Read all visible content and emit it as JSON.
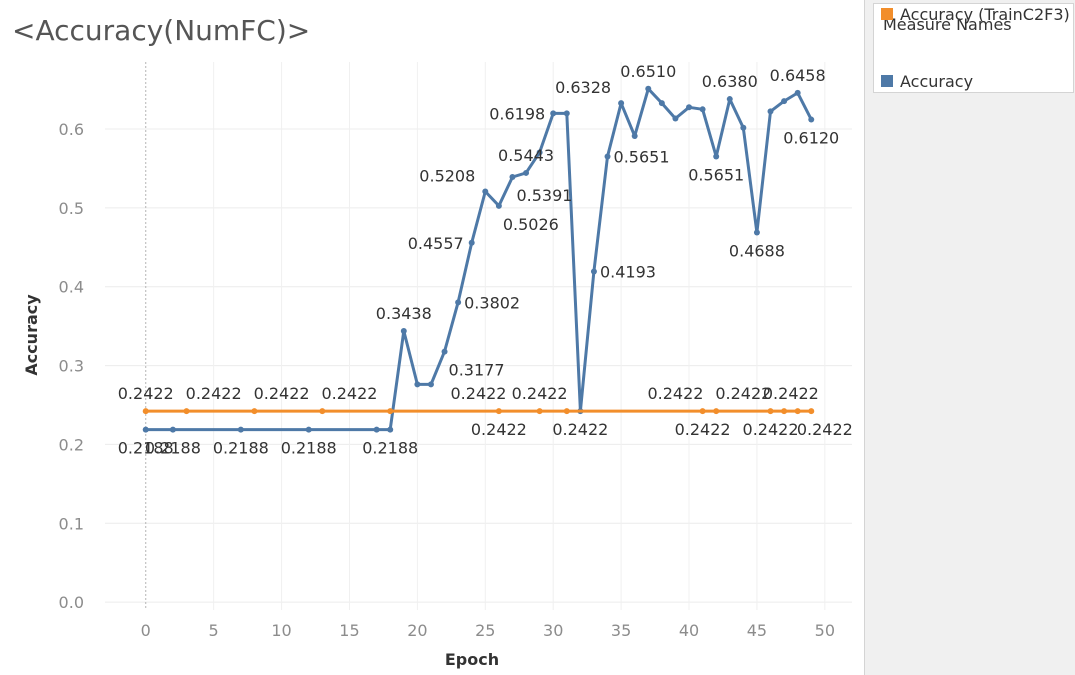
{
  "title": "<Accuracy(NumFC)>",
  "legend": {
    "title": "Measure Names",
    "items": [
      {
        "label": "Accuracy",
        "color": "#4e79a7"
      },
      {
        "label": "Accuracy (TrainC2F3)",
        "color": "#f28e2b"
      }
    ]
  },
  "chart_data": {
    "type": "line",
    "title": "<Accuracy(NumFC)>",
    "xlabel": "Epoch",
    "ylabel": "Accuracy",
    "xlim": [
      -3,
      52
    ],
    "ylim": [
      -0.01,
      0.685
    ],
    "xticks": [
      0,
      5,
      10,
      15,
      20,
      25,
      30,
      35,
      40,
      45,
      50
    ],
    "yticks": [
      0.0,
      0.1,
      0.2,
      0.3,
      0.4,
      0.5,
      0.6
    ],
    "ytick_labels": [
      "0.0",
      "0.1",
      "0.2",
      "0.3",
      "0.4",
      "0.5",
      "0.6"
    ],
    "grid": true,
    "legend_position": "right",
    "series": [
      {
        "name": "Accuracy",
        "color": "#4e79a7",
        "x": [
          0,
          2,
          7,
          12,
          17,
          18,
          19,
          20,
          21,
          22,
          23,
          24,
          25,
          26,
          27,
          28,
          29,
          30,
          31,
          32,
          33,
          34,
          35,
          36,
          37,
          38,
          39,
          40,
          41,
          42,
          43,
          44,
          45,
          46,
          47,
          48,
          49
        ],
        "y": [
          0.2188,
          0.2188,
          0.2188,
          0.2188,
          0.2188,
          0.2188,
          0.3438,
          0.2761,
          0.2761,
          0.3177,
          0.3802,
          0.4557,
          0.5208,
          0.5026,
          0.5391,
          0.5443,
          0.5703,
          0.6198,
          0.6198,
          0.2422,
          0.4193,
          0.5651,
          0.6328,
          0.5911,
          0.651,
          0.6328,
          0.6133,
          0.6276,
          0.625,
          0.5651,
          0.638,
          0.6016,
          0.4688,
          0.6224,
          0.6354,
          0.6458,
          0.612
        ],
        "labels": [
          {
            "x": 0,
            "y": 0.2188,
            "text": "0.2188",
            "pos": "below"
          },
          {
            "x": 2,
            "y": 0.2188,
            "text": "0.2188",
            "pos": "below"
          },
          {
            "x": 7,
            "y": 0.2188,
            "text": "0.2188",
            "pos": "below"
          },
          {
            "x": 12,
            "y": 0.2188,
            "text": "0.2188",
            "pos": "below"
          },
          {
            "x": 18,
            "y": 0.2188,
            "text": "0.2188",
            "pos": "below"
          },
          {
            "x": 19,
            "y": 0.3438,
            "text": "0.3438",
            "pos": "above"
          },
          {
            "x": 22,
            "y": 0.3177,
            "text": "0.3177",
            "pos": "below-right"
          },
          {
            "x": 23,
            "y": 0.3802,
            "text": "0.3802",
            "pos": "right"
          },
          {
            "x": 24,
            "y": 0.4557,
            "text": "0.4557",
            "pos": "left"
          },
          {
            "x": 25,
            "y": 0.5208,
            "text": "0.5208",
            "pos": "above-left"
          },
          {
            "x": 26,
            "y": 0.5026,
            "text": "0.5026",
            "pos": "below-right"
          },
          {
            "x": 27,
            "y": 0.5391,
            "text": "0.5391",
            "pos": "below-right"
          },
          {
            "x": 28,
            "y": 0.5443,
            "text": "0.5443",
            "pos": "above"
          },
          {
            "x": 30,
            "y": 0.6198,
            "text": "0.6198",
            "pos": "left"
          },
          {
            "x": 33,
            "y": 0.4193,
            "text": "0.4193",
            "pos": "right"
          },
          {
            "x": 34,
            "y": 0.5651,
            "text": "0.5651",
            "pos": "right"
          },
          {
            "x": 35,
            "y": 0.6328,
            "text": "0.6328",
            "pos": "above-left"
          },
          {
            "x": 37,
            "y": 0.651,
            "text": "0.6510",
            "pos": "above"
          },
          {
            "x": 42,
            "y": 0.5651,
            "text": "0.5651",
            "pos": "below"
          },
          {
            "x": 43,
            "y": 0.638,
            "text": "0.6380",
            "pos": "above"
          },
          {
            "x": 45,
            "y": 0.4688,
            "text": "0.4688",
            "pos": "below"
          },
          {
            "x": 48,
            "y": 0.6458,
            "text": "0.6458",
            "pos": "above"
          },
          {
            "x": 49,
            "y": 0.612,
            "text": "0.6120",
            "pos": "below"
          }
        ]
      },
      {
        "name": "Accuracy (TrainC2F3)",
        "color": "#f28e2b",
        "x": [
          0,
          3,
          8,
          13,
          18,
          26,
          29,
          31,
          41,
          42,
          46,
          47,
          48,
          49
        ],
        "y": [
          0.2422,
          0.2422,
          0.2422,
          0.2422,
          0.2422,
          0.2422,
          0.2422,
          0.2422,
          0.2422,
          0.2422,
          0.2422,
          0.2422,
          0.2422,
          0.2422
        ],
        "labels": [
          {
            "x": 0,
            "y": 0.2422,
            "text": "0.2422",
            "pos": "above"
          },
          {
            "x": 5,
            "y": 0.2422,
            "text": "0.2422",
            "pos": "above"
          },
          {
            "x": 10,
            "y": 0.2422,
            "text": "0.2422",
            "pos": "above"
          },
          {
            "x": 15,
            "y": 0.2422,
            "text": "0.2422",
            "pos": "above"
          },
          {
            "x": 24.5,
            "y": 0.2422,
            "text": "0.2422",
            "pos": "above"
          },
          {
            "x": 29,
            "y": 0.2422,
            "text": "0.2422",
            "pos": "above"
          },
          {
            "x": 26,
            "y": 0.2422,
            "text": "0.2422",
            "pos": "below"
          },
          {
            "x": 32,
            "y": 0.2422,
            "text": "0.2422",
            "pos": "below"
          },
          {
            "x": 39,
            "y": 0.2422,
            "text": "0.2422",
            "pos": "above"
          },
          {
            "x": 41,
            "y": 0.2422,
            "text": "0.2422",
            "pos": "below"
          },
          {
            "x": 44,
            "y": 0.2422,
            "text": "0.2422",
            "pos": "above"
          },
          {
            "x": 46,
            "y": 0.2422,
            "text": "0.2422",
            "pos": "below"
          },
          {
            "x": 47.5,
            "y": 0.2422,
            "text": "0.2422",
            "pos": "above"
          },
          {
            "x": 50,
            "y": 0.2422,
            "text": "0.2422",
            "pos": "below"
          }
        ]
      }
    ]
  }
}
